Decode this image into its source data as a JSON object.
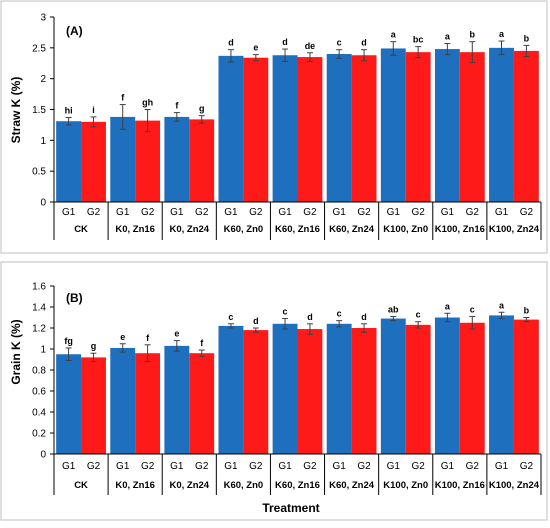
{
  "xlabel": "Treatment",
  "groups": [
    "G1",
    "G2"
  ],
  "treatments": [
    "CK",
    "K0, Zn16",
    "K0, Zn24",
    "K60, Zn0",
    "K60, Zn16",
    "K60, Zn24",
    "K100, Zn0",
    "K100, Zn16",
    "K100, Zn24"
  ],
  "colors": {
    "G1": "#1f6fbf",
    "G2": "#ff1a1a"
  },
  "chart_data": [
    {
      "type": "bar",
      "panel": "(A)",
      "ylabel": "Straw K (%)",
      "ylim": [
        0,
        3
      ],
      "yticks": [
        0,
        0.5,
        1,
        1.5,
        2,
        2.5,
        3
      ],
      "ytick_labels": [
        "0",
        "0.5",
        "1",
        "1.5",
        "2",
        "2.5",
        "3"
      ],
      "categories": [
        "CK",
        "K0, Zn16",
        "K0, Zn24",
        "K60, Zn0",
        "K60, Zn16",
        "K60, Zn24",
        "K100, Zn0",
        "K100, Zn16",
        "K100, Zn24"
      ],
      "series": [
        {
          "name": "G1",
          "values": [
            1.31,
            1.38,
            1.38,
            2.37,
            2.38,
            2.4,
            2.49,
            2.48,
            2.5
          ],
          "errors": [
            0.06,
            0.2,
            0.07,
            0.1,
            0.1,
            0.07,
            0.11,
            0.09,
            0.11
          ],
          "letters": [
            "hi",
            "f",
            "f",
            "d",
            "d",
            "c",
            "a",
            "a",
            "a"
          ]
        },
        {
          "name": "G2",
          "values": [
            1.3,
            1.32,
            1.34,
            2.34,
            2.35,
            2.38,
            2.43,
            2.43,
            2.45
          ],
          "errors": [
            0.08,
            0.18,
            0.06,
            0.05,
            0.07,
            0.09,
            0.09,
            0.17,
            0.09
          ],
          "letters": [
            "i",
            "gh",
            "g",
            "e",
            "de",
            "d",
            "bc",
            "b",
            "b"
          ]
        }
      ]
    },
    {
      "type": "bar",
      "panel": "(B)",
      "ylabel": "Grain K (%)",
      "ylim": [
        0,
        1.6
      ],
      "yticks": [
        0,
        0.2,
        0.4,
        0.6,
        0.8,
        1,
        1.2,
        1.4,
        1.6
      ],
      "ytick_labels": [
        "0",
        "0.2",
        "0.4",
        "0.6",
        "0.8",
        "1",
        "1.2",
        "1.4",
        "1.6"
      ],
      "categories": [
        "CK",
        "K0, Zn16",
        "K0, Zn24",
        "K60, Zn0",
        "K60, Zn16",
        "K60, Zn24",
        "K100, Zn0",
        "K100, Zn16",
        "K100, Zn24"
      ],
      "series": [
        {
          "name": "G1",
          "values": [
            0.95,
            1.01,
            1.03,
            1.22,
            1.24,
            1.24,
            1.29,
            1.3,
            1.32
          ],
          "errors": [
            0.06,
            0.04,
            0.05,
            0.02,
            0.05,
            0.03,
            0.02,
            0.04,
            0.03
          ],
          "letters": [
            "fg",
            "e",
            "e",
            "c",
            "c",
            "c",
            "ab",
            "a",
            "a"
          ]
        },
        {
          "name": "G2",
          "values": [
            0.92,
            0.96,
            0.96,
            1.18,
            1.19,
            1.2,
            1.23,
            1.25,
            1.28
          ],
          "errors": [
            0.04,
            0.08,
            0.03,
            0.02,
            0.05,
            0.04,
            0.03,
            0.06,
            0.02
          ],
          "letters": [
            "g",
            "f",
            "f",
            "d",
            "d",
            "d",
            "c",
            "c",
            "b"
          ]
        }
      ]
    }
  ]
}
